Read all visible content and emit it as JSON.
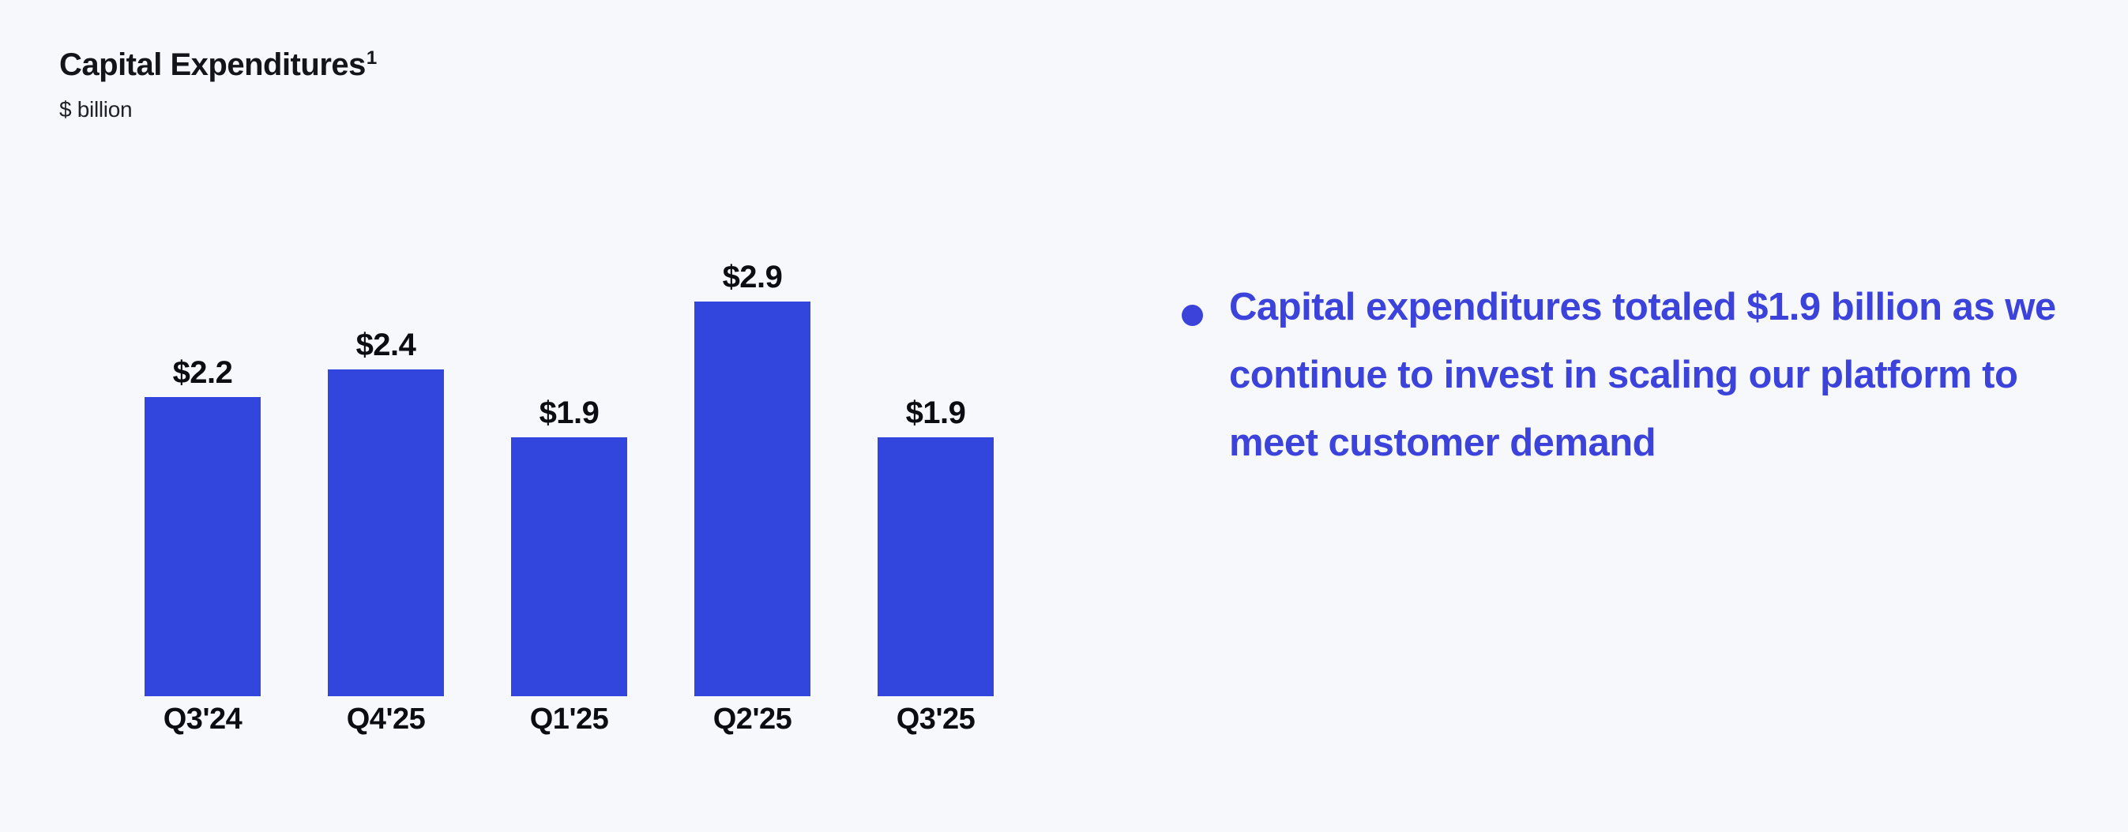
{
  "header": {
    "title": "Capital Expenditures",
    "footnote_marker": "1",
    "units": "$ billion"
  },
  "chart_data": {
    "type": "bar",
    "title": "Capital Expenditures",
    "subtitle_units": "$ billion",
    "categories": [
      "Q3'24",
      "Q4'25",
      "Q1'25",
      "Q2'25",
      "Q3'25"
    ],
    "values": [
      2.2,
      2.4,
      1.9,
      2.9,
      1.9
    ],
    "data_labels": [
      "$2.2",
      "$2.4",
      "$1.9",
      "$2.9",
      "$1.9"
    ],
    "xlabel": "",
    "ylabel": "$ billion",
    "ylim": [
      0,
      3.2
    ],
    "grid": false,
    "legend": "none",
    "data_label_position": "above-bars",
    "bar_color": "#3245DC",
    "label_color": "#0C0D12"
  },
  "bullet": {
    "lines": [
      "Capital expenditures totaled $1.9 billion as we",
      "continue to invest in scaling our platform to",
      "meet customer demand"
    ],
    "text_color": "#3C43DB",
    "marker_color": "#3C43DB"
  },
  "colors": {
    "background": "#F7F8FB",
    "bar": "#3245DC",
    "title_text": "#14151B",
    "bullet_text": "#3C43DB"
  }
}
